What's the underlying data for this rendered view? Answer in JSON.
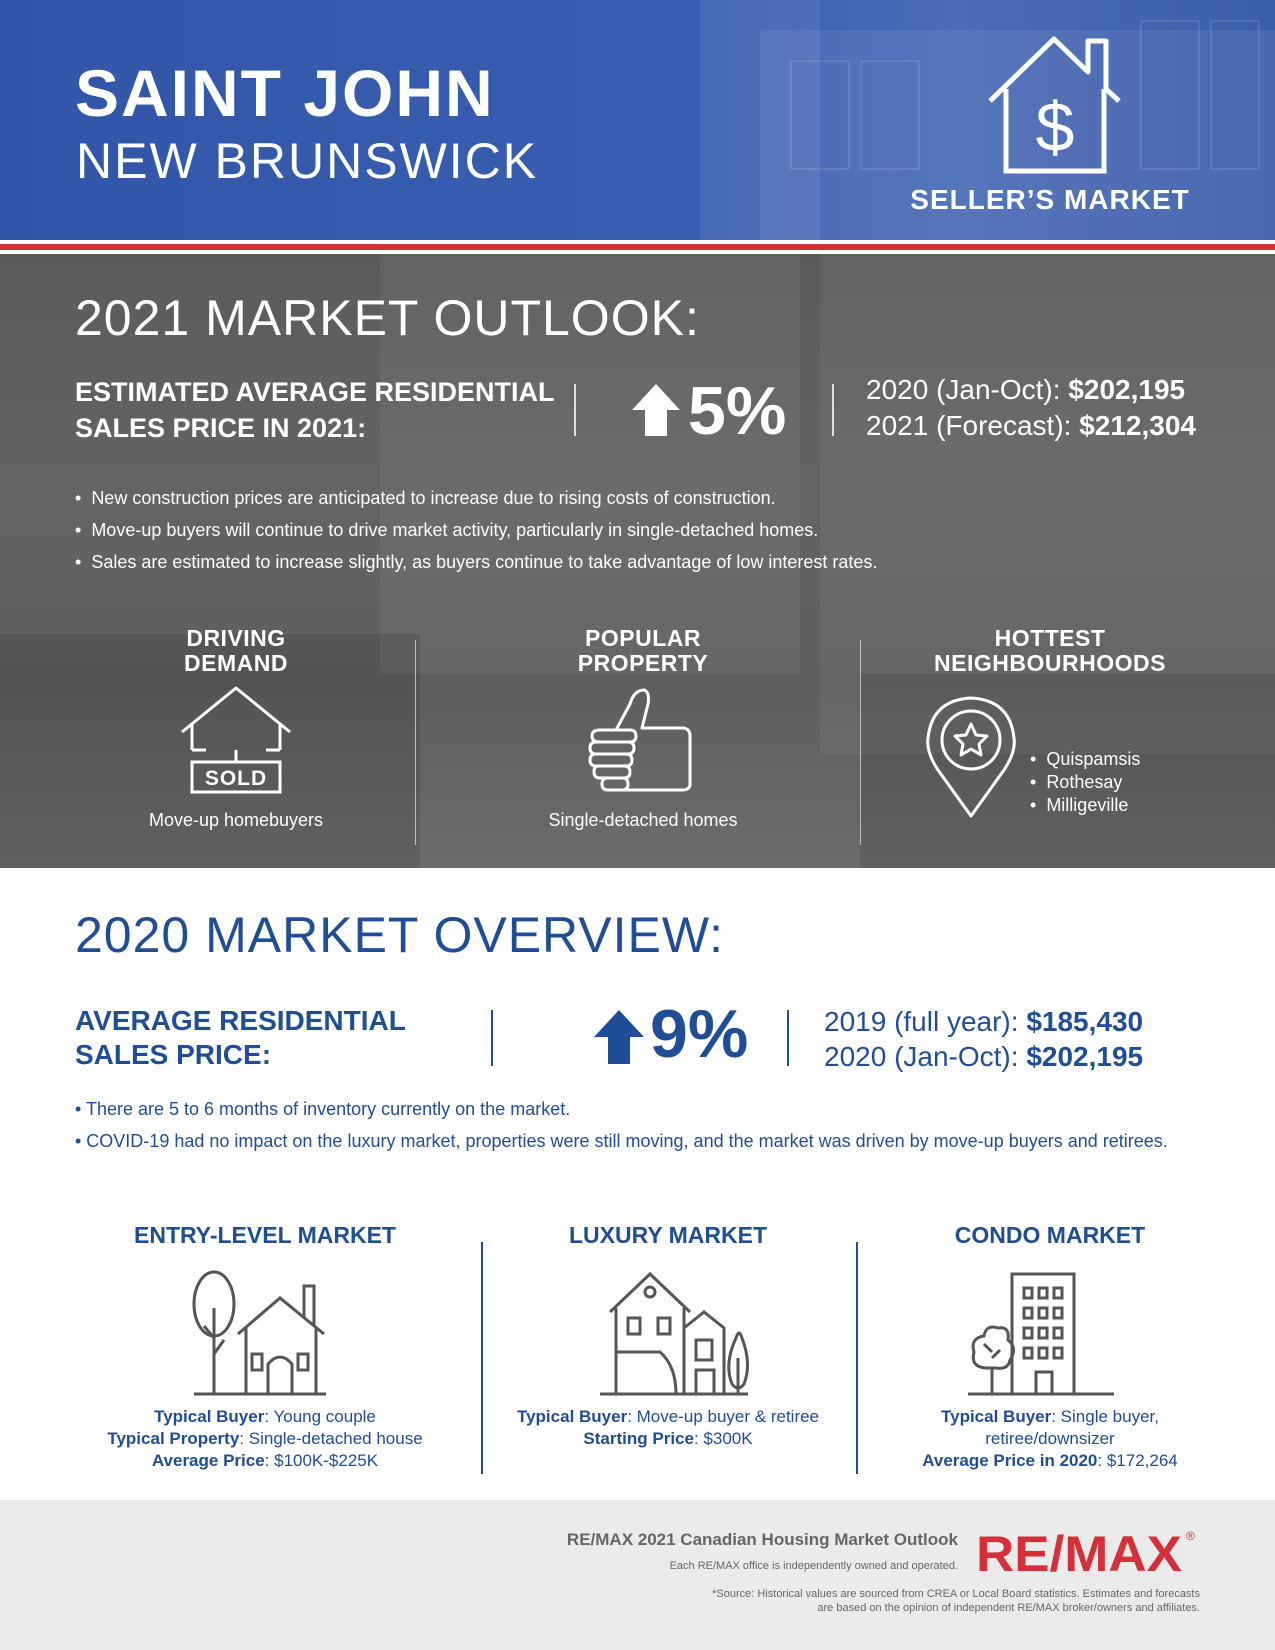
{
  "header": {
    "city": "SAINT JOHN",
    "province": "NEW BRUNSWICK",
    "market_type": "SELLER’S MARKET",
    "icon": "house-dollar-icon"
  },
  "outlook": {
    "title": "2021 MARKET OUTLOOK:",
    "est_label": "ESTIMATED AVERAGE RESIDENTIAL SALES PRICE IN 2021:",
    "change": "5%",
    "price_2020_label": "2020 (Jan-Oct):",
    "price_2020_value": "$202,195",
    "price_2021_label": "2021 (Forecast):",
    "price_2021_value": "$212,304",
    "bullets": [
      "New construction prices are anticipated to increase due to rising costs of construction.",
      "Move-up buyers will continue to drive market activity, particularly in single-detached homes.",
      "Sales are estimated to increase slightly, as buyers continue to take advantage of low interest rates."
    ],
    "driving_demand": {
      "line1": "DRIVING",
      "line2": "DEMAND",
      "sold": "SOLD",
      "caption": "Move-up homebuyers"
    },
    "popular_property": {
      "line1": "POPULAR",
      "line2": "PROPERTY",
      "caption": "Single-detached homes"
    },
    "hottest": {
      "line1": "HOTTEST",
      "line2": "NEIGHBOURHOODS",
      "items": [
        "Quispamsis",
        "Rothesay",
        "Milligeville"
      ]
    }
  },
  "overview": {
    "title": "2020 MARKET OVERVIEW:",
    "avg_label_1": "AVERAGE RESIDENTIAL",
    "avg_label_2": "SALES PRICE:",
    "change": "9%",
    "price_2019_label": "2019 (full year):",
    "price_2019_value": "$185,430",
    "price_2020_label": "2020 (Jan-Oct):",
    "price_2020_value": "$202,195",
    "notes": [
      "• There are 5 to 6 months of inventory currently on the market.",
      "• COVID-19 had no impact on the luxury market, properties were still moving, and the market was driven by move-up buyers and retirees."
    ],
    "entry": {
      "title": "ENTRY-LEVEL MARKET",
      "k1": "Typical Buyer",
      "v1": ": Young couple",
      "k2": "Typical Property",
      "v2": ": Single-detached house",
      "k3": "Average Price",
      "v3": ": $100K-$225K"
    },
    "luxury": {
      "title": "LUXURY MARKET",
      "k1": "Typical Buyer",
      "v1": ": Move-up buyer & retiree",
      "k2": "Starting Price",
      "v2": ": $300K"
    },
    "condo": {
      "title": "CONDO MARKET",
      "k1": "Typical Buyer",
      "v1": ": Single buyer,",
      "v1b": "retiree/downsizer",
      "k2": "Average Price in 2020",
      "v2": ": $172,264"
    }
  },
  "footer": {
    "title": "RE/MAX 2021 Canadian Housing Market Outlook",
    "sub": "Each RE/MAX office is independently owned and operated.",
    "source_1": "*Source: Historical values are sourced from CREA or Local Board statistics. Estimates and forecasts",
    "source_2": "are based on the opinion of independent RE/MAX broker/owners and affiliates.",
    "logo_text": "RE/MAX",
    "logo_mark": "®"
  },
  "colors": {
    "header_blue": "#3a5fb0",
    "brand_blue": "#1f4e96",
    "brand_red": "#d3303a",
    "outlook_gray": "#616161"
  }
}
